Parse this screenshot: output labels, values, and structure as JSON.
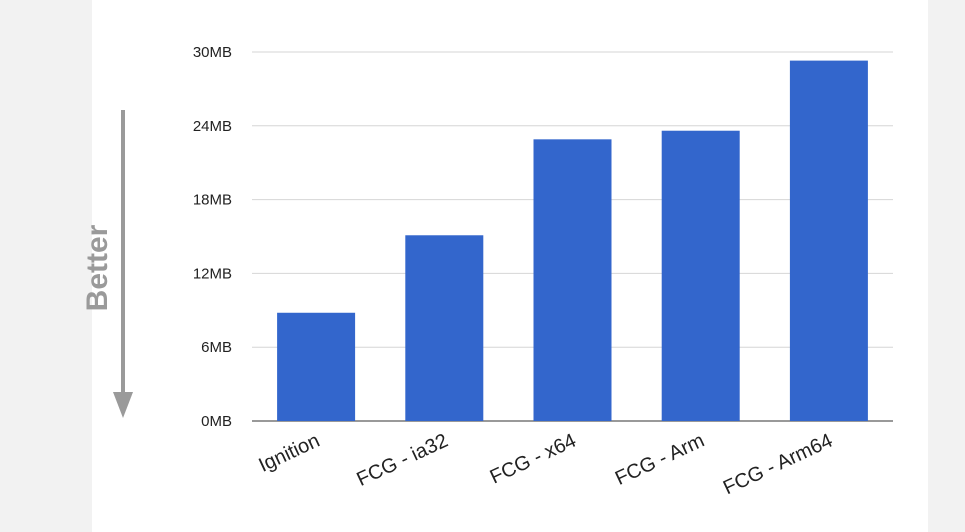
{
  "chart_data": {
    "type": "bar",
    "title": "",
    "xlabel": "",
    "ylabel": "",
    "categories": [
      "Ignition",
      "FCG - ia32",
      "FCG - x64",
      "FCG - Arm",
      "FCG - Arm64"
    ],
    "values": [
      8.8,
      15.1,
      22.9,
      23.6,
      29.3
    ],
    "unit": "MB",
    "ylim": [
      0,
      30
    ],
    "yticks": [
      0,
      6,
      12,
      18,
      24,
      30
    ],
    "ytick_labels": [
      "0MB",
      "6MB",
      "12MB",
      "18MB",
      "24MB",
      "30MB"
    ],
    "grid": true,
    "legend": "none",
    "bar_color": "#3366cc",
    "annotation": {
      "text": "Better",
      "direction": "down",
      "color": "#9a9a9a"
    }
  }
}
